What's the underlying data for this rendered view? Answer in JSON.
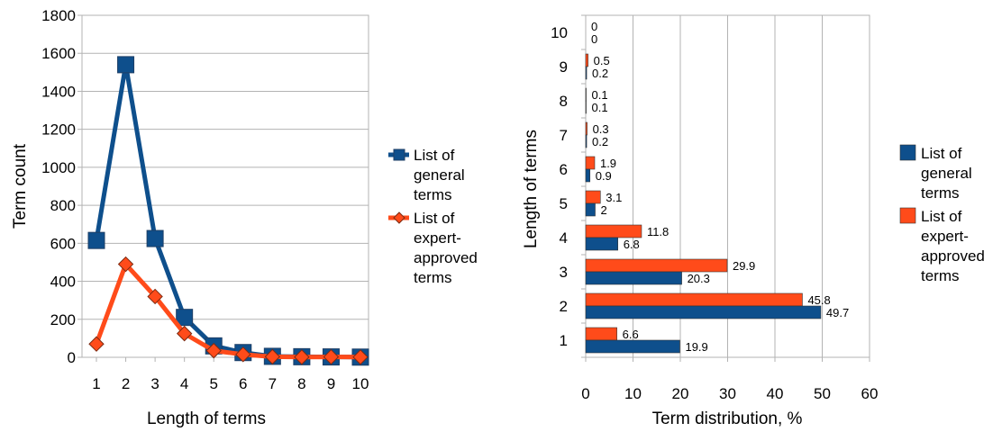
{
  "chart_data": [
    {
      "type": "line",
      "title": "",
      "xlabel": "Length of terms",
      "ylabel": "Term count",
      "x": [
        1,
        2,
        3,
        4,
        5,
        6,
        7,
        8,
        9,
        10
      ],
      "ylim": [
        0,
        1800
      ],
      "xlim": [
        1,
        10
      ],
      "yticks": [
        0,
        200,
        400,
        600,
        800,
        1000,
        1200,
        1400,
        1600,
        1800
      ],
      "grid": true,
      "legend_position": "right",
      "series": [
        {
          "name": "List of general terms",
          "legend_lines": [
            "List of",
            "general",
            "terms"
          ],
          "color": "#0e4f8c",
          "marker": "square",
          "values": [
            615,
            1540,
            625,
            210,
            60,
            25,
            5,
            3,
            2,
            1
          ]
        },
        {
          "name": "List of expert-approved terms",
          "legend_lines": [
            "List of",
            "expert-",
            "approved",
            "terms"
          ],
          "color": "#ff4b1a",
          "marker": "diamond",
          "values": [
            70,
            490,
            320,
            125,
            35,
            15,
            3,
            1,
            2,
            1
          ]
        }
      ]
    },
    {
      "type": "bar",
      "orientation": "horizontal",
      "title": "",
      "xlabel": "Term distribution, %",
      "ylabel": "Length of terms",
      "categories": [
        "1",
        "2",
        "3",
        "4",
        "5",
        "6",
        "7",
        "8",
        "9",
        "10"
      ],
      "xlim": [
        0,
        60
      ],
      "xticks": [
        0,
        10,
        20,
        30,
        40,
        50,
        60
      ],
      "grid": true,
      "legend_position": "right",
      "series": [
        {
          "name": "List of general terms",
          "legend_lines": [
            "List of",
            "general",
            "terms"
          ],
          "color": "#0e4f8c",
          "values": [
            19.9,
            49.7,
            20.3,
            6.8,
            2,
            0.9,
            0.2,
            0.1,
            0.2,
            0
          ],
          "labels": [
            "19.9",
            "49.7",
            "20.3",
            "6.8",
            "2",
            "0.9",
            "0.2",
            "0.1",
            "0.2",
            "0"
          ]
        },
        {
          "name": "List of expert-approved terms",
          "legend_lines": [
            "List of",
            "expert-",
            "approved",
            "terms"
          ],
          "color": "#ff4b1a",
          "values": [
            6.6,
            45.8,
            29.9,
            11.8,
            3.1,
            1.9,
            0.3,
            0.1,
            0.5,
            0
          ],
          "labels": [
            "6.6",
            "45.8",
            "29.9",
            "11.8",
            "3.1",
            "1.9",
            "0.3",
            "0.1",
            "0.5",
            "0"
          ]
        }
      ]
    }
  ]
}
